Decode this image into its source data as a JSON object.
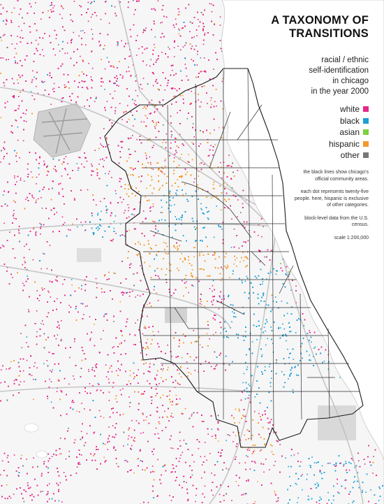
{
  "title": {
    "line1": "A TAXONOMY OF",
    "line2": "TRANSITIONS"
  },
  "subtitle": {
    "lines": [
      "racial / ethnic",
      "self-identification",
      "in chicago",
      "in the year 2000"
    ]
  },
  "legend": {
    "items": [
      {
        "label": "white",
        "color": "#e6288a"
      },
      {
        "label": "black",
        "color": "#1a9fd6"
      },
      {
        "label": "asian",
        "color": "#7bd13f"
      },
      {
        "label": "hispanic",
        "color": "#f2992a"
      },
      {
        "label": "other",
        "color": "#777777"
      }
    ]
  },
  "notes": {
    "boundaries": "the black lines show chicago's official community areas.",
    "dots": "each dot represents twenty-five people. here, hispanic is exclusive of other categories.",
    "source": "block-level data from the U.S. census.",
    "scale": "scale 1:200,000"
  },
  "map": {
    "background_color": "#f6f6f6",
    "lake_color": "#ffffff",
    "boundary_color": "#1a1a1a",
    "infrastructure_color": "#bdbdbd"
  }
}
